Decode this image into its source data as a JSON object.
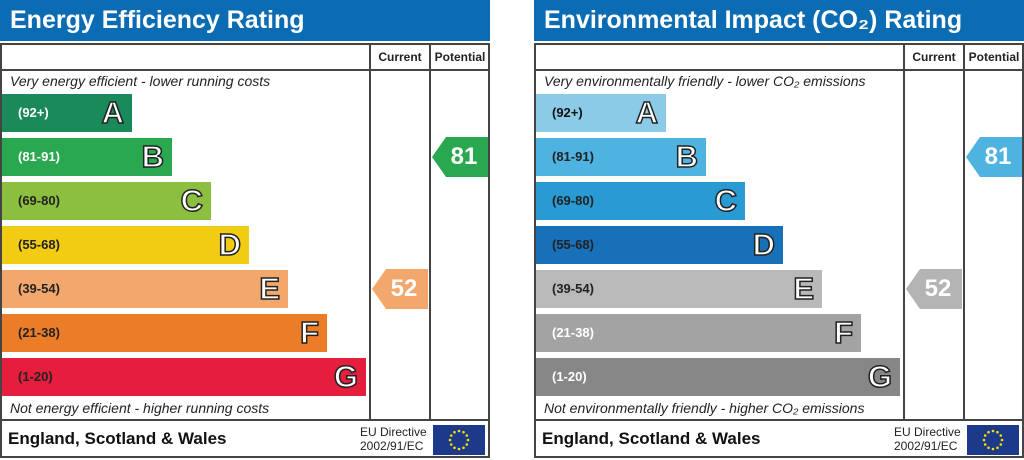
{
  "chart_data": [
    {
      "type": "table",
      "title": "Energy Efficiency Rating",
      "columns": [
        "Current",
        "Potential"
      ],
      "top_note": "Very energy efficient - lower running costs",
      "bottom_note": "Not energy efficient - higher running costs",
      "bands": [
        {
          "letter": "A",
          "range": "(92+)",
          "color": "#1a8a5a",
          "text": "#fff"
        },
        {
          "letter": "B",
          "range": "(81-91)",
          "color": "#2aa84f",
          "text": "#fff"
        },
        {
          "letter": "C",
          "range": "(69-80)",
          "color": "#8cbf3f",
          "text": "#222"
        },
        {
          "letter": "D",
          "range": "(55-68)",
          "color": "#f2cc13",
          "text": "#222"
        },
        {
          "letter": "E",
          "range": "(39-54)",
          "color": "#f2a86c",
          "text": "#222"
        },
        {
          "letter": "F",
          "range": "(21-38)",
          "color": "#ec7d28",
          "text": "#222"
        },
        {
          "letter": "G",
          "range": "(1-20)",
          "color": "#e41e3c",
          "text": "#222"
        }
      ],
      "current": {
        "value": "52",
        "band": 4,
        "color": "#f2a86c"
      },
      "potential": {
        "value": "81",
        "band": 1,
        "color": "#2aa84f"
      },
      "footer": "England, Scotland & Wales",
      "eu1": "EU Directive",
      "eu2": "2002/91/EC"
    },
    {
      "type": "table",
      "title": "Environmental Impact (CO₂) Rating",
      "columns": [
        "Current",
        "Potential"
      ],
      "top_note": "Very environmentally friendly - lower CO₂ emissions",
      "bottom_note": "Not environmentally friendly - higher CO₂ emissions",
      "bands": [
        {
          "letter": "A",
          "range": "(92+)",
          "color": "#8ccbe8",
          "text": "#111"
        },
        {
          "letter": "B",
          "range": "(81-91)",
          "color": "#4fb3e1",
          "text": "#222"
        },
        {
          "letter": "C",
          "range": "(69-80)",
          "color": "#2a9ad3",
          "text": "#222"
        },
        {
          "letter": "D",
          "range": "(55-68)",
          "color": "#1870b8",
          "text": "#222"
        },
        {
          "letter": "E",
          "range": "(39-54)",
          "color": "#b9b9b9",
          "text": "#222"
        },
        {
          "letter": "F",
          "range": "(21-38)",
          "color": "#a3a3a3",
          "text": "#fff"
        },
        {
          "letter": "G",
          "range": "(1-20)",
          "color": "#878787",
          "text": "#fff"
        }
      ],
      "current": {
        "value": "52",
        "band": 4,
        "color": "#b4b4b4"
      },
      "potential": {
        "value": "81",
        "band": 1,
        "color": "#4fb3e1"
      },
      "footer": "England, Scotland & Wales",
      "eu1": "EU Directive",
      "eu2": "2002/91/EC"
    }
  ]
}
